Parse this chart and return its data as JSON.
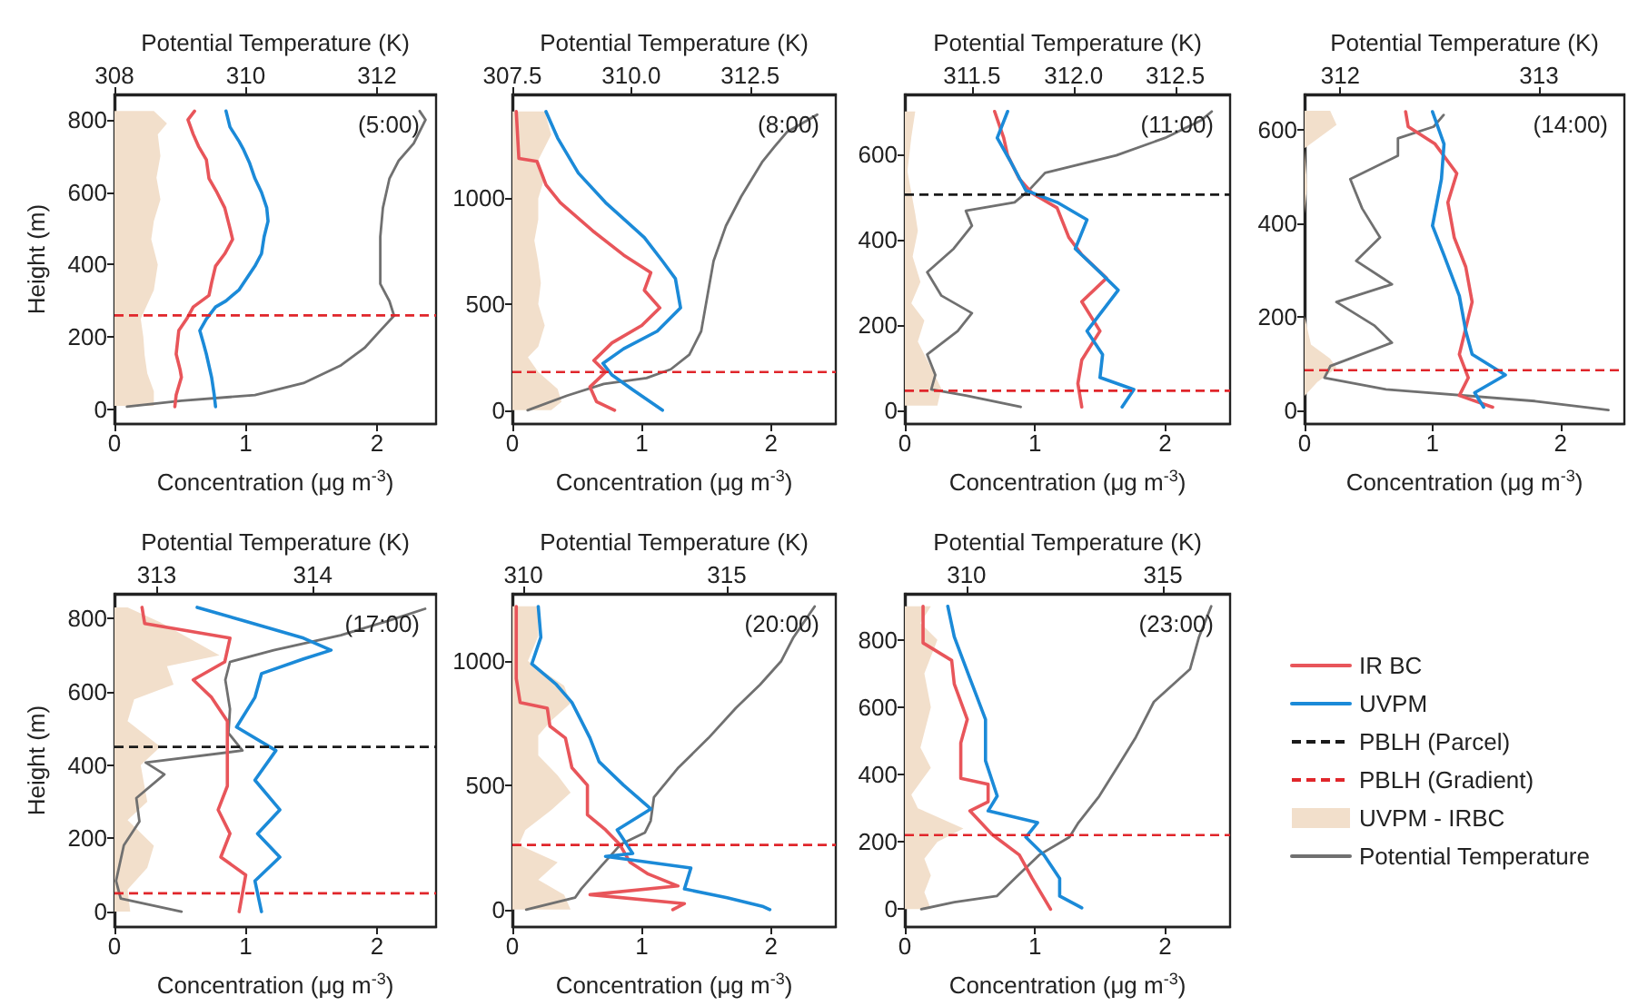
{
  "chart_data": [
    {
      "type": "line",
      "title": "(5:00)",
      "xlabel": "Concentration (μg m$^{-3}$)",
      "x2label": "Potential Temperature (K)",
      "ylabel": "Height (m)",
      "xlim": [
        0,
        2.45
      ],
      "xticks": [
        0,
        1,
        2
      ],
      "x2lim": [
        308,
        312.9
      ],
      "x2ticks": [
        308,
        310,
        312
      ],
      "ylim": [
        -40,
        870
      ],
      "yticks": [
        0,
        200,
        400,
        600,
        800
      ],
      "ref_lines": [
        {
          "axis": "y",
          "value": 260,
          "color": "#e0262b",
          "line_style": "dashed"
        }
      ],
      "series": [
        {
          "type": "area",
          "color": "#f2dfcb",
          "x": [
            0,
            0.3,
            0.4,
            0.33,
            0.35,
            0.32,
            0.35,
            0.3,
            0.28,
            0.33,
            0.3,
            0.25,
            0.2,
            0.22,
            0.23,
            0.25,
            0.3,
            0.3,
            0
          ],
          "values": [
            824,
            824,
            790,
            760,
            700,
            640,
            580,
            520,
            470,
            400,
            330,
            290,
            250,
            200,
            150,
            100,
            50,
            10,
            10
          ]
        },
        {
          "type": "line",
          "color": "#e8555a",
          "x": [
            0.61,
            0.56,
            0.6,
            0.64,
            0.7,
            0.72,
            0.78,
            0.84,
            0.88,
            0.9,
            0.84,
            0.77,
            0.74,
            0.72,
            0.6,
            0.55,
            0.49,
            0.47,
            0.5,
            0.51,
            0.47,
            0.46
          ],
          "values": [
            824,
            800,
            760,
            727,
            690,
            638,
            600,
            557,
            500,
            470,
            430,
            396,
            350,
            315,
            283,
            250,
            218,
            153,
            110,
            89,
            40,
            8
          ]
        },
        {
          "type": "line",
          "color": "#1b8ad8",
          "x": [
            0.85,
            0.88,
            0.95,
            0.98,
            1.03,
            1.07,
            1.12,
            1.16,
            1.17,
            1.14,
            1.12,
            1.07,
            0.95,
            0.85,
            0.77,
            0.7,
            0.65,
            0.68,
            0.7,
            0.74,
            0.76,
            0.77
          ],
          "values": [
            824,
            780,
            740,
            720,
            680,
            638,
            600,
            557,
            520,
            477,
            430,
            396,
            331,
            300,
            283,
            250,
            218,
            180,
            153,
            89,
            40,
            8
          ]
        },
        {
          "type": "line",
          "axis": "x2",
          "color": "#707070",
          "x": [
            308.19,
            309.02,
            310.14,
            310.88,
            311.44,
            311.81,
            312.05,
            312.26,
            312.19,
            312.05,
            312.05,
            312.09,
            312.19,
            312.33,
            312.56,
            312.74,
            312.65
          ],
          "values": [
            8,
            24,
            40,
            73,
            121,
            170,
            218,
            259,
            299,
            347,
            477,
            557,
            638,
            687,
            735,
            800,
            824
          ]
        }
      ]
    },
    {
      "type": "line",
      "title": "(8:00)",
      "xlabel": "Concentration (μg m$^{-3}$)",
      "x2label": "Potential Temperature (K)",
      "xlim": [
        0,
        2.5
      ],
      "xticks": [
        0,
        1,
        2
      ],
      "x2lim": [
        307.5,
        314.3
      ],
      "x2ticks": [
        {
          "value": 307.5,
          "label": "307.5"
        },
        {
          "value": 310,
          "label": "310.0"
        },
        {
          "value": 312.5,
          "label": "312.5"
        }
      ],
      "ylim": [
        -65,
        1490
      ],
      "yticks": [
        0,
        500,
        1000
      ],
      "ref_lines": [
        {
          "axis": "y",
          "value": 180,
          "color": "#e0262b",
          "line_style": "dashed"
        }
      ],
      "series": [
        {
          "type": "area",
          "color": "#f2dfcb",
          "x": [
            0,
            0.25,
            0.3,
            0.2,
            0.25,
            0.2,
            0.2,
            0.17,
            0.2,
            0.22,
            0.2,
            0.25,
            0.2,
            0.12,
            0.2,
            0.35,
            0.38,
            0.3,
            0
          ],
          "values": [
            1410,
            1410,
            1300,
            1180,
            1100,
            1000,
            900,
            800,
            700,
            600,
            500,
            400,
            300,
            250,
            180,
            100,
            40,
            0,
            0
          ]
        },
        {
          "type": "line",
          "color": "#e8555a",
          "x": [
            0.03,
            0.05,
            0.19,
            0.26,
            0.37,
            0.63,
            0.86,
            1.07,
            1.02,
            1.14,
            1.0,
            0.77,
            0.63,
            0.72,
            0.6,
            0.65,
            0.79
          ],
          "values": [
            1409,
            1188,
            1174,
            1063,
            980,
            842,
            732,
            649,
            566,
            483,
            400,
            318,
            235,
            180,
            110,
            41,
            0
          ]
        },
        {
          "type": "line",
          "color": "#1b8ad8",
          "x": [
            0.26,
            0.35,
            0.51,
            0.72,
            1.02,
            1.16,
            1.26,
            1.3,
            1.12,
            0.86,
            0.7,
            0.77,
            0.93,
            1.16
          ],
          "values": [
            1409,
            1284,
            1119,
            980,
            815,
            704,
            621,
            483,
            373,
            290,
            221,
            166,
            97,
            0
          ]
        },
        {
          "type": "line",
          "axis": "x2",
          "color": "#707070",
          "x": [
            307.82,
            308.65,
            309.42,
            310.32,
            310.83,
            311.22,
            311.47,
            311.6,
            311.73,
            311.99,
            312.31,
            312.76,
            313.01,
            313.27,
            313.91
          ],
          "values": [
            0,
            69,
            124,
            152,
            193,
            262,
            373,
            539,
            704,
            870,
            1008,
            1174,
            1243,
            1312,
            1395
          ]
        }
      ]
    },
    {
      "type": "line",
      "title": "(11:00)",
      "xlabel": "Concentration (μg m$^{-3}$)",
      "x2label": "Potential Temperature (K)",
      "xlim": [
        0,
        2.5
      ],
      "xticks": [
        0,
        1,
        2
      ],
      "x2lim": [
        311.17,
        312.77
      ],
      "x2ticks": [
        {
          "value": 311.5,
          "label": "311.5"
        },
        {
          "value": 312,
          "label": "312.0"
        },
        {
          "value": 312.5,
          "label": "312.5"
        }
      ],
      "ylim": [
        -33,
        740
      ],
      "yticks": [
        0,
        200,
        400,
        600
      ],
      "ref_lines": [
        {
          "axis": "y",
          "value": 505,
          "color": "#1a1a1a",
          "line_style": "dashed"
        },
        {
          "axis": "y",
          "value": 45,
          "color": "#e0262b",
          "line_style": "dashed"
        }
      ],
      "series": [
        {
          "type": "area",
          "color": "#f2dfcb",
          "x": [
            0,
            0.08,
            0.05,
            0.02,
            0.08,
            0.1,
            0.06,
            0.12,
            0.05,
            0.15,
            0.1,
            0.2,
            0.28,
            0.25,
            0
          ],
          "values": [
            700,
            700,
            640,
            560,
            460,
            420,
            360,
            300,
            250,
            210,
            160,
            100,
            50,
            10,
            10
          ]
        },
        {
          "type": "line",
          "color": "#e8555a",
          "x": [
            0.69,
            0.76,
            0.79,
            0.88,
            0.98,
            1.17,
            1.26,
            1.36,
            1.55,
            1.36,
            1.5,
            1.36,
            1.33,
            1.36
          ],
          "values": [
            700,
            638,
            597,
            542,
            508,
            474,
            405,
            364,
            309,
            254,
            185,
            117,
            62,
            7
          ]
        },
        {
          "type": "line",
          "color": "#1b8ad8",
          "x": [
            0.79,
            0.71,
            0.81,
            0.93,
            1.17,
            1.4,
            1.31,
            1.5,
            1.64,
            1.4,
            1.52,
            1.5,
            1.76,
            1.67
          ],
          "values": [
            700,
            638,
            584,
            515,
            487,
            446,
            378,
            323,
            281,
            185,
            130,
            76,
            48,
            7
          ]
        },
        {
          "type": "line",
          "axis": "x2",
          "color": "#707070",
          "x": [
            311.74,
            311.47,
            311.3,
            311.32,
            311.28,
            311.43,
            311.5,
            311.35,
            311.28,
            311.41,
            311.5,
            311.47,
            311.71,
            311.78,
            311.86,
            312.21,
            312.45,
            312.63,
            312.68
          ],
          "values": [
            7,
            34,
            48,
            82,
            130,
            185,
            227,
            268,
            323,
            378,
            432,
            467,
            487,
            515,
            556,
            597,
            638,
            680,
            700
          ]
        }
      ]
    },
    {
      "type": "line",
      "title": "(14:00)",
      "xlabel": "Concentration (μg m$^{-3}$)",
      "x2label": "Potential Temperature (K)",
      "xlim": [
        0,
        2.5
      ],
      "xticks": [
        0,
        1,
        2
      ],
      "x2lim": [
        311.82,
        313.43
      ],
      "x2ticks": [
        312,
        313
      ],
      "ylim": [
        -30,
        675
      ],
      "yticks": [
        0,
        200,
        400,
        600
      ],
      "ref_lines": [
        {
          "axis": "y",
          "value": 85,
          "color": "#e0262b",
          "line_style": "dashed"
        }
      ],
      "series": [
        {
          "type": "area",
          "color": "#f2dfcb",
          "x": [
            0,
            0.2,
            0.25,
            0.1,
            0,
            0.02,
            0,
            0,
            0.05,
            0.2,
            0.25,
            0.1,
            0
          ],
          "values": [
            640,
            640,
            610,
            580,
            560,
            480,
            420,
            200,
            140,
            110,
            90,
            60,
            30
          ]
        },
        {
          "type": "line",
          "color": "#e8555a",
          "x": [
            0.79,
            0.81,
            1.02,
            1.19,
            1.12,
            1.17,
            1.26,
            1.31,
            1.21,
            1.28,
            1.21,
            1.47
          ],
          "values": [
            638,
            606,
            569,
            506,
            444,
            369,
            306,
            231,
            119,
            69,
            31,
            6
          ]
        },
        {
          "type": "line",
          "color": "#1b8ad8",
          "x": [
            1.0,
            1.09,
            1.07,
            1.0,
            1.09,
            1.21,
            1.26,
            1.31,
            1.57,
            1.33,
            1.4
          ],
          "values": [
            638,
            569,
            494,
            394,
            331,
            244,
            169,
            119,
            75,
            37,
            6
          ]
        },
        {
          "type": "line",
          "axis": "x2",
          "color": "#707070",
          "x": [
            313.35,
            312.98,
            312.23,
            311.92,
            311.95,
            312.26,
            312.17,
            311.98,
            312.26,
            312.08,
            312.2,
            312.11,
            312.05,
            312.29,
            312.29,
            312.47,
            312.52
          ],
          "values": [
            0,
            19,
            44,
            69,
            94,
            144,
            181,
            231,
            269,
            319,
            369,
            431,
            494,
            544,
            581,
            606,
            631
          ]
        }
      ]
    },
    {
      "type": "line",
      "title": "(17:00)",
      "xlabel": "Concentration (μg m$^{-3}$)",
      "x2label": "Potential Temperature (K)",
      "ylabel": "Height (m)",
      "xlim": [
        0,
        2.45
      ],
      "xticks": [
        0,
        1,
        2
      ],
      "x2lim": [
        312.73,
        314.79
      ],
      "x2ticks": [
        313,
        314
      ],
      "ylim": [
        -42,
        868
      ],
      "yticks": [
        0,
        200,
        400,
        600,
        800
      ],
      "ref_lines": [
        {
          "axis": "y",
          "value": 450,
          "color": "#1a1a1a",
          "line_style": "dashed"
        },
        {
          "axis": "y",
          "value": 50,
          "color": "#e0262b",
          "line_style": "dashed"
        }
      ],
      "series": [
        {
          "type": "area",
          "color": "#f2dfcb",
          "x": [
            0,
            0.1,
            0.35,
            0.6,
            0.8,
            0.4,
            0.45,
            0.15,
            0.1,
            0.35,
            0.2,
            0.25,
            0.1,
            0.3,
            0.25,
            0.1,
            0.12,
            0
          ],
          "values": [
            831,
            831,
            790,
            740,
            700,
            670,
            620,
            580,
            520,
            450,
            400,
            300,
            250,
            180,
            120,
            60,
            0,
            0
          ]
        },
        {
          "type": "line",
          "color": "#e8555a",
          "x": [
            0.21,
            0.23,
            0.88,
            0.84,
            0.6,
            0.74,
            0.86,
            0.86,
            0.86,
            0.79,
            0.88,
            0.81,
            1.0,
            0.95
          ],
          "values": [
            831,
            787,
            747,
            682,
            633,
            585,
            520,
            440,
            343,
            278,
            213,
            149,
            100,
            0
          ]
        },
        {
          "type": "line",
          "color": "#1b8ad8",
          "x": [
            0.63,
            0.98,
            1.44,
            1.65,
            1.44,
            1.12,
            1.07,
            0.93,
            1.23,
            1.07,
            1.26,
            1.09,
            1.26,
            1.07,
            1.12
          ],
          "values": [
            831,
            795,
            747,
            714,
            690,
            650,
            585,
            504,
            440,
            359,
            278,
            213,
            149,
            84,
            0
          ]
        },
        {
          "type": "line",
          "axis": "x2",
          "color": "#707070",
          "x": [
            313.16,
            312.77,
            312.74,
            312.79,
            312.89,
            312.87,
            313.05,
            312.93,
            313.55,
            313.46,
            313.47,
            313.44,
            313.47,
            313.75,
            314.18,
            314.49,
            314.72
          ],
          "values": [
            0,
            36,
            84,
            181,
            246,
            310,
            375,
            407,
            440,
            488,
            553,
            633,
            682,
            714,
            755,
            795,
            827
          ]
        }
      ]
    },
    {
      "type": "line",
      "title": "(20:00)",
      "xlabel": "Concentration (μg m$^{-3}$)",
      "x2label": "Potential Temperature (K)",
      "xlim": [
        0,
        2.5
      ],
      "xticks": [
        0,
        1,
        2
      ],
      "x2lim": [
        309.73,
        317.68
      ],
      "x2ticks": [
        310,
        315
      ],
      "ylim": [
        -70,
        1270
      ],
      "yticks": [
        0,
        500,
        1000
      ],
      "ref_lines": [
        {
          "axis": "y",
          "value": 260,
          "color": "#e0262b",
          "line_style": "dashed"
        }
      ],
      "series": [
        {
          "type": "area",
          "color": "#f2dfcb",
          "x": [
            0,
            0.2,
            0.2,
            0.12,
            0.4,
            0.45,
            0.3,
            0.2,
            0.2,
            0.35,
            0.45,
            0.3,
            0.1,
            0.05,
            0.35,
            0.2,
            0.4,
            0.45,
            0
          ],
          "values": [
            1220,
            1220,
            1100,
            1000,
            900,
            830,
            760,
            700,
            620,
            540,
            470,
            400,
            320,
            260,
            190,
            120,
            60,
            0,
            0
          ]
        },
        {
          "type": "line",
          "color": "#e8555a",
          "x": [
            0.03,
            0.03,
            0.06,
            0.27,
            0.29,
            0.41,
            0.46,
            0.58,
            0.58,
            0.72,
            0.83,
            0.91,
            1.05,
            1.28,
            0.6,
            1.33,
            1.24
          ],
          "values": [
            1219,
            929,
            833,
            810,
            738,
            690,
            571,
            500,
            381,
            321,
            262,
            190,
            143,
            95,
            60,
            24,
            0
          ]
        },
        {
          "type": "line",
          "color": "#1b8ad8",
          "x": [
            0.2,
            0.22,
            0.15,
            0.34,
            0.46,
            0.53,
            0.6,
            0.67,
            0.86,
            1.07,
            0.81,
            0.93,
            0.72,
            1.38,
            1.33,
            1.66,
            1.94,
            1.99
          ],
          "values": [
            1219,
            1095,
            988,
            905,
            833,
            762,
            690,
            595,
            500,
            405,
            321,
            226,
            214,
            167,
            83,
            48,
            12,
            0
          ]
        },
        {
          "type": "line",
          "axis": "x2",
          "color": "#707070",
          "x": [
            310.07,
            311.27,
            311.42,
            311.87,
            312.39,
            312.99,
            313.13,
            313.21,
            313.81,
            314.55,
            315.22,
            315.82,
            316.34,
            316.64,
            317.16
          ],
          "values": [
            0,
            48,
            83,
            167,
            262,
            310,
            357,
            452,
            571,
            690,
            810,
            905,
            1000,
            1095,
            1219
          ]
        }
      ]
    },
    {
      "type": "line",
      "title": "(23:00)",
      "xlabel": "Concentration (μg m$^{-3}$)",
      "x2label": "Potential Temperature (K)",
      "xlim": [
        0,
        2.5
      ],
      "xticks": [
        0,
        1,
        2
      ],
      "x2lim": [
        308.43,
        316.71
      ],
      "x2ticks": [
        310,
        315
      ],
      "ylim": [
        -53,
        937
      ],
      "yticks": [
        0,
        200,
        400,
        600,
        800
      ],
      "legend": "right",
      "ref_lines": [
        {
          "axis": "y",
          "value": null,
          "label": "PBLH (Parcel)",
          "color": "#1a1a1a",
          "line_style": "dashed"
        },
        {
          "axis": "y",
          "value": 220,
          "label": "PBLH (Gradient)",
          "color": "#e0262b",
          "line_style": "dashed"
        }
      ],
      "series": [
        {
          "type": "area",
          "name": "UVPM - IRBC",
          "color": "#f2dfcb",
          "x": [
            0,
            0.2,
            0.12,
            0.25,
            0.15,
            0.2,
            0.12,
            0.2,
            0.05,
            0.1,
            0.45,
            0.25,
            0.15,
            0.2,
            0.15,
            0.2,
            0
          ],
          "values": [
            900,
            900,
            850,
            800,
            700,
            600,
            480,
            420,
            340,
            300,
            240,
            200,
            150,
            100,
            50,
            0,
            0
          ]
        },
        {
          "type": "line",
          "name": "IR BC",
          "color": "#e8555a",
          "x": [
            0.14,
            0.14,
            0.36,
            0.38,
            0.48,
            0.43,
            0.43,
            0.64,
            0.64,
            0.5,
            0.67,
            0.88,
            0.98,
            1.12
          ],
          "values": [
            900,
            791,
            739,
            669,
            564,
            494,
            389,
            371,
            319,
            292,
            222,
            161,
            91,
            0
          ]
        },
        {
          "type": "line",
          "name": "UVPM",
          "color": "#1b8ad8",
          "x": [
            0.33,
            0.38,
            0.5,
            0.62,
            0.62,
            0.71,
            0.64,
            1.02,
            0.93,
            1.07,
            1.19,
            1.19,
            1.36
          ],
          "values": [
            900,
            809,
            686,
            564,
            441,
            336,
            292,
            257,
            214,
            161,
            91,
            39,
            4
          ]
        },
        {
          "type": "line",
          "name": "Potential Temperature",
          "axis": "x2",
          "color": "#707070",
          "x": [
            308.85,
            309.69,
            310.77,
            311.23,
            311.85,
            312.62,
            312.85,
            313.38,
            313.85,
            314.31,
            314.77,
            315.69,
            315.92,
            316.23
          ],
          "values": [
            0,
            21,
            39,
            91,
            161,
            214,
            257,
            336,
            424,
            511,
            616,
            713,
            809,
            900
          ]
        }
      ]
    }
  ]
}
